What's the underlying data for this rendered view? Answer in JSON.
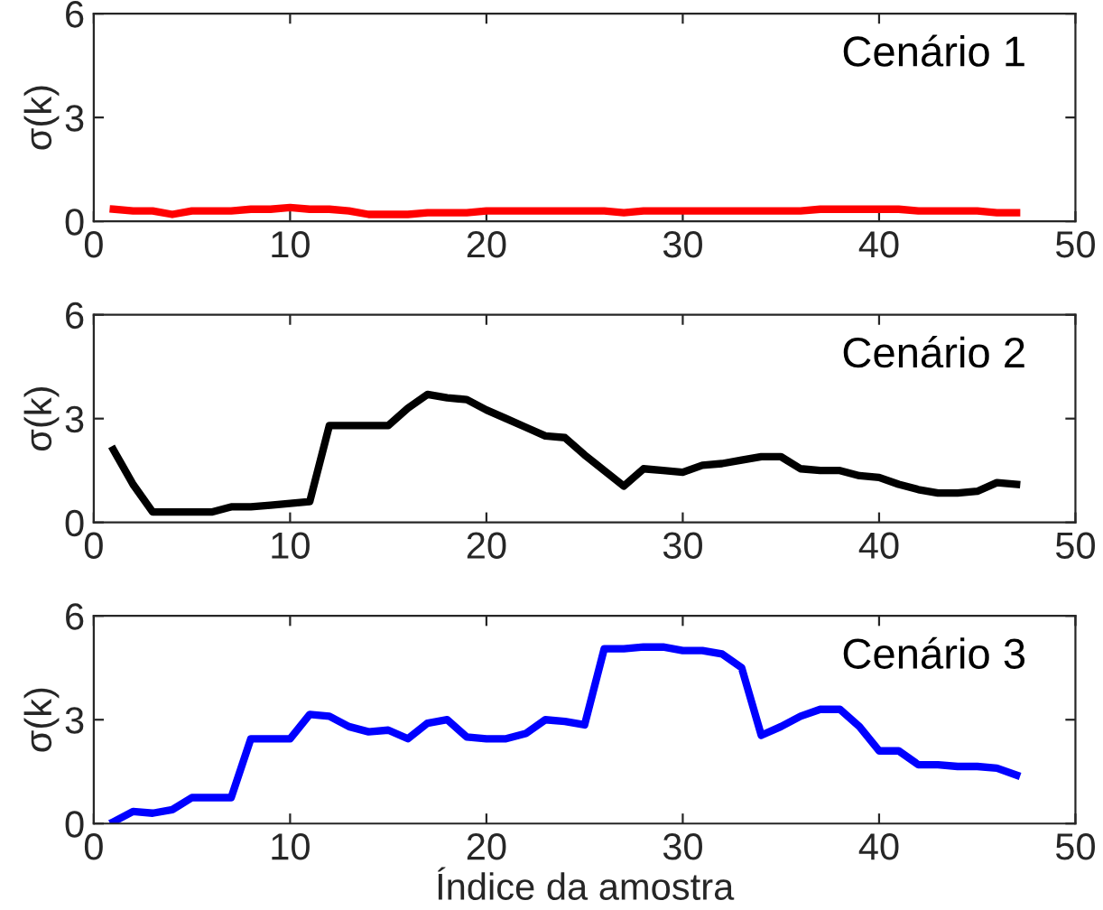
{
  "chart_data": [
    {
      "type": "line",
      "title": "Cenário 1",
      "ylabel": "σ(k)",
      "x": [
        1,
        2,
        3,
        4,
        5,
        6,
        7,
        8,
        9,
        10,
        11,
        12,
        13,
        14,
        15,
        16,
        17,
        18,
        19,
        20,
        21,
        22,
        23,
        24,
        25,
        26,
        27,
        28,
        29,
        30,
        31,
        32,
        33,
        34,
        35,
        36,
        37,
        38,
        39,
        40,
        41,
        42,
        43,
        44,
        45,
        46,
        47
      ],
      "series": [
        {
          "color": "#ff0000",
          "values": [
            0.35,
            0.3,
            0.3,
            0.2,
            0.3,
            0.3,
            0.3,
            0.35,
            0.35,
            0.4,
            0.35,
            0.35,
            0.3,
            0.2,
            0.2,
            0.2,
            0.25,
            0.25,
            0.25,
            0.3,
            0.3,
            0.3,
            0.3,
            0.3,
            0.3,
            0.3,
            0.25,
            0.3,
            0.3,
            0.3,
            0.3,
            0.3,
            0.3,
            0.3,
            0.3,
            0.3,
            0.35,
            0.35,
            0.35,
            0.35,
            0.35,
            0.3,
            0.3,
            0.3,
            0.3,
            0.25,
            0.25
          ]
        }
      ],
      "xlim": [
        0,
        50
      ],
      "xticks": [
        0,
        10,
        20,
        30,
        40,
        50
      ],
      "ylim": [
        0,
        6
      ],
      "yticks": [
        0,
        3,
        6
      ],
      "grid": false,
      "legend": false
    },
    {
      "type": "line",
      "title": "Cenário 2",
      "ylabel": "σ(k)",
      "x": [
        1,
        2,
        3,
        4,
        5,
        6,
        7,
        8,
        9,
        10,
        11,
        12,
        13,
        14,
        15,
        16,
        17,
        18,
        19,
        20,
        21,
        22,
        23,
        24,
        25,
        26,
        27,
        28,
        29,
        30,
        31,
        32,
        33,
        34,
        35,
        36,
        37,
        38,
        39,
        40,
        41,
        42,
        43,
        44,
        45,
        46,
        47
      ],
      "series": [
        {
          "color": "#000000",
          "values": [
            2.1,
            1.1,
            0.3,
            0.3,
            0.3,
            0.3,
            0.45,
            0.45,
            0.5,
            0.55,
            0.6,
            2.8,
            2.8,
            2.8,
            2.8,
            3.3,
            3.7,
            3.6,
            3.55,
            3.25,
            3.0,
            2.75,
            2.5,
            2.45,
            1.95,
            1.5,
            1.05,
            1.55,
            1.5,
            1.45,
            1.65,
            1.7,
            1.8,
            1.9,
            1.9,
            1.55,
            1.5,
            1.5,
            1.35,
            1.3,
            1.1,
            0.95,
            0.85,
            0.85,
            0.9,
            1.15,
            1.1
          ]
        }
      ],
      "xlim": [
        0,
        50
      ],
      "xticks": [
        0,
        10,
        20,
        30,
        40,
        50
      ],
      "ylim": [
        0,
        6
      ],
      "yticks": [
        0,
        3,
        6
      ],
      "grid": false,
      "legend": false
    },
    {
      "type": "line",
      "title": "Cenário 3",
      "ylabel": "σ(k)",
      "xlabel": "Índice da amostra",
      "x": [
        1,
        2,
        3,
        4,
        5,
        6,
        7,
        8,
        9,
        10,
        11,
        12,
        13,
        14,
        15,
        16,
        17,
        18,
        19,
        20,
        21,
        22,
        23,
        24,
        25,
        26,
        27,
        28,
        29,
        30,
        31,
        32,
        33,
        34,
        35,
        36,
        37,
        38,
        39,
        40,
        41,
        42,
        43,
        44,
        45,
        46,
        47
      ],
      "series": [
        {
          "color": "#0000ff",
          "values": [
            0.05,
            0.35,
            0.3,
            0.4,
            0.75,
            0.75,
            0.75,
            2.45,
            2.45,
            2.45,
            3.15,
            3.1,
            2.8,
            2.65,
            2.7,
            2.45,
            2.9,
            3.0,
            2.5,
            2.45,
            2.45,
            2.6,
            3.0,
            2.95,
            2.85,
            5.05,
            5.05,
            5.1,
            5.1,
            5.0,
            5.0,
            4.9,
            4.5,
            2.55,
            2.8,
            3.1,
            3.3,
            3.3,
            2.8,
            2.1,
            2.1,
            1.7,
            1.7,
            1.65,
            1.65,
            1.6,
            1.4
          ]
        }
      ],
      "xlim": [
        0,
        50
      ],
      "xticks": [
        0,
        10,
        20,
        30,
        40,
        50
      ],
      "ylim": [
        0,
        6
      ],
      "yticks": [
        0,
        3,
        6
      ],
      "grid": false,
      "legend": false
    }
  ]
}
